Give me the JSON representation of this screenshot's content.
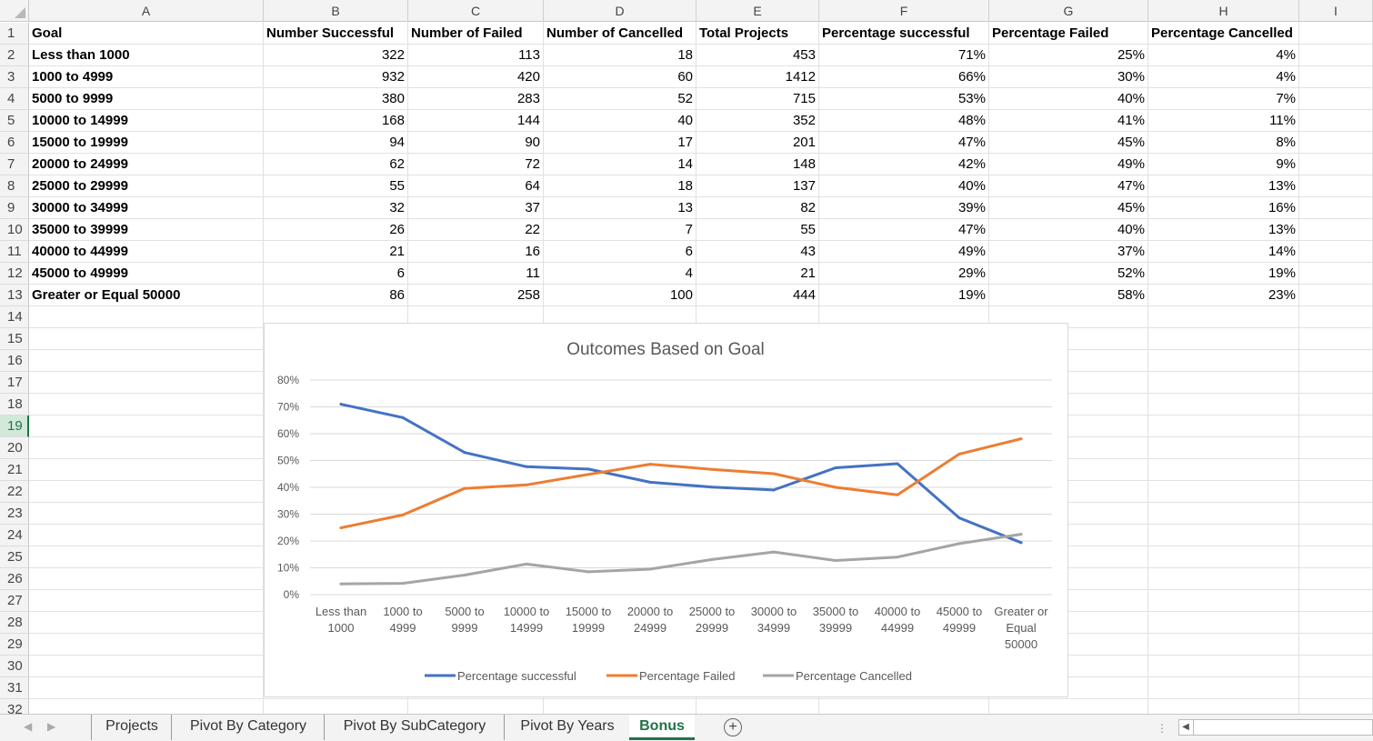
{
  "columns": [
    "A",
    "B",
    "C",
    "D",
    "E",
    "F",
    "G",
    "H",
    "I"
  ],
  "rows": [
    "1",
    "2",
    "3",
    "4",
    "5",
    "6",
    "7",
    "8",
    "9",
    "10",
    "11",
    "12",
    "13",
    "14",
    "15",
    "16",
    "17",
    "18",
    "19",
    "20",
    "21",
    "22",
    "23",
    "24",
    "25",
    "26",
    "27",
    "28",
    "29",
    "30",
    "31",
    "32"
  ],
  "header": [
    "Goal",
    "Number Successful",
    "Number of Failed",
    "Number of Cancelled",
    "Total Projects",
    "Percentage successful",
    "Percentage Failed",
    "Percentage Cancelled"
  ],
  "table": [
    [
      "Less than 1000",
      "322",
      "113",
      "18",
      "453",
      "71%",
      "25%",
      "4%"
    ],
    [
      "1000 to 4999",
      "932",
      "420",
      "60",
      "1412",
      "66%",
      "30%",
      "4%"
    ],
    [
      "5000 to 9999",
      "380",
      "283",
      "52",
      "715",
      "53%",
      "40%",
      "7%"
    ],
    [
      "10000 to 14999",
      "168",
      "144",
      "40",
      "352",
      "48%",
      "41%",
      "11%"
    ],
    [
      "15000 to 19999",
      "94",
      "90",
      "17",
      "201",
      "47%",
      "45%",
      "8%"
    ],
    [
      "20000 to 24999",
      "62",
      "72",
      "14",
      "148",
      "42%",
      "49%",
      "9%"
    ],
    [
      "25000 to 29999",
      "55",
      "64",
      "18",
      "137",
      "40%",
      "47%",
      "13%"
    ],
    [
      "30000 to 34999",
      "32",
      "37",
      "13",
      "82",
      "39%",
      "45%",
      "16%"
    ],
    [
      "35000 to 39999",
      "26",
      "22",
      "7",
      "55",
      "47%",
      "40%",
      "13%"
    ],
    [
      "40000 to 44999",
      "21",
      "16",
      "6",
      "43",
      "49%",
      "37%",
      "14%"
    ],
    [
      "45000 to 49999",
      "6",
      "11",
      "4",
      "21",
      "29%",
      "52%",
      "19%"
    ],
    [
      "Greater or Equal 50000",
      "86",
      "258",
      "100",
      "444",
      "19%",
      "58%",
      "23%"
    ]
  ],
  "chart_data": {
    "type": "line",
    "title": "Outcomes Based on Goal",
    "categories": [
      [
        "Less than",
        "1000"
      ],
      [
        "1000 to",
        "4999"
      ],
      [
        "5000 to",
        "9999"
      ],
      [
        "10000 to",
        "14999"
      ],
      [
        "15000 to",
        "19999"
      ],
      [
        "20000 to",
        "24999"
      ],
      [
        "25000 to",
        "29999"
      ],
      [
        "30000 to",
        "34999"
      ],
      [
        "35000 to",
        "39999"
      ],
      [
        "40000 to",
        "44999"
      ],
      [
        "45000 to",
        "49999"
      ],
      [
        "Greater or",
        "Equal",
        "50000"
      ]
    ],
    "y_ticks": [
      "0%",
      "10%",
      "20%",
      "30%",
      "40%",
      "50%",
      "60%",
      "70%",
      "80%"
    ],
    "ylim": [
      0,
      0.8
    ],
    "grid": true,
    "legend": "bottom",
    "series": [
      {
        "name": "Percentage successful",
        "color": "#4472C4",
        "values": [
          0.71,
          0.66,
          0.53,
          0.477,
          0.468,
          0.419,
          0.401,
          0.39,
          0.473,
          0.488,
          0.286,
          0.194
        ]
      },
      {
        "name": "Percentage Failed",
        "color": "#ED7D31",
        "values": [
          0.249,
          0.297,
          0.396,
          0.409,
          0.448,
          0.486,
          0.467,
          0.451,
          0.4,
          0.372,
          0.524,
          0.581
        ]
      },
      {
        "name": "Percentage Cancelled",
        "color": "#A5A5A5",
        "values": [
          0.04,
          0.042,
          0.073,
          0.114,
          0.085,
          0.095,
          0.131,
          0.159,
          0.127,
          0.14,
          0.19,
          0.225
        ]
      }
    ]
  },
  "tabs": [
    "Projects",
    "Pivot By Category",
    "Pivot By SubCategory",
    "Pivot By Years",
    "Bonus"
  ],
  "active_tab": "Bonus",
  "add_sheet_label": "+"
}
